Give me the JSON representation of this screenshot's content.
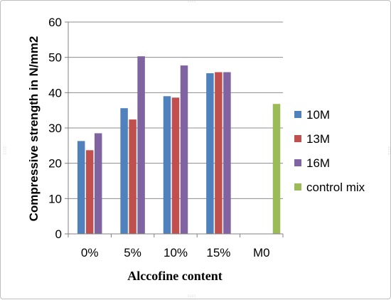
{
  "chart_data": {
    "type": "bar",
    "categories": [
      "0%",
      "5%",
      "10%",
      "15%",
      "M0"
    ],
    "series": [
      {
        "name": "10M",
        "color": "#4f81bd",
        "values": [
          26.3,
          35.6,
          39.0,
          45.5,
          null
        ]
      },
      {
        "name": "13M",
        "color": "#c0504d",
        "values": [
          23.7,
          32.4,
          38.6,
          45.8,
          null
        ]
      },
      {
        "name": "16M",
        "color": "#8064a2",
        "values": [
          28.5,
          50.3,
          47.7,
          45.8,
          null
        ]
      },
      {
        "name": "control mix",
        "color": "#9bbb59",
        "values": [
          null,
          null,
          null,
          null,
          36.8
        ]
      }
    ],
    "xlabel": "Alccofine content",
    "ylabel": "Compressive strength in N/mm2",
    "ylim": [
      0,
      60
    ],
    "yticks": [
      0,
      10,
      20,
      30,
      40,
      50,
      60
    ],
    "grid": "horizontal",
    "legend_position": "right"
  }
}
